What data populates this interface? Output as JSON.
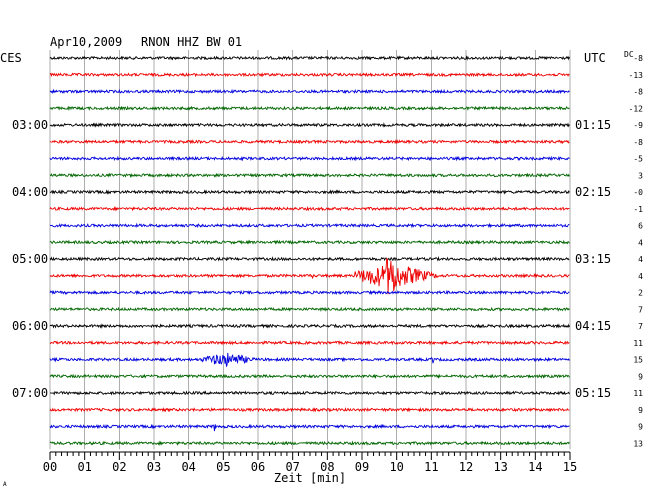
{
  "header": {
    "date": "Apr10,2009",
    "station": "RNON HHZ BW 01",
    "left_tz": "CES",
    "right_tz": "UTC",
    "dc_label": "DC"
  },
  "xaxis": {
    "label": "Zeit [min]",
    "ticks": [
      "00",
      "01",
      "02",
      "03",
      "04",
      "05",
      "06",
      "07",
      "08",
      "09",
      "10",
      "11",
      "12",
      "13",
      "14",
      "15"
    ]
  },
  "footer_mark": "A",
  "chart_data": {
    "type": "line",
    "title": "Apr10,2009 RNON HHZ BW 01",
    "xlabel": "Zeit [min]",
    "xlim": [
      0,
      15
    ],
    "trace_count": 24,
    "trace_minutes": 15,
    "color_cycle": [
      "#000000",
      "#ee0000",
      "#0000dd",
      "#006600"
    ],
    "left_time_labels": [
      {
        "trace": 4,
        "text": "03:00"
      },
      {
        "trace": 8,
        "text": "04:00"
      },
      {
        "trace": 12,
        "text": "05:00"
      },
      {
        "trace": 16,
        "text": "06:00"
      },
      {
        "trace": 20,
        "text": "07:00"
      }
    ],
    "right_time_labels": [
      {
        "trace": 4,
        "text": "01:15"
      },
      {
        "trace": 8,
        "text": "02:15"
      },
      {
        "trace": 12,
        "text": "03:15"
      },
      {
        "trace": 16,
        "text": "04:15"
      },
      {
        "trace": 20,
        "text": "05:15"
      }
    ],
    "dc_offsets": [
      "-8",
      "-13",
      "-8",
      "-12",
      "-9",
      "-8",
      "-5",
      "3",
      "-0",
      "-1",
      "6",
      "4",
      "4",
      "4",
      "2",
      "7",
      "7",
      "11",
      "15",
      "9",
      "11",
      "9",
      "9",
      "13"
    ],
    "events": [
      {
        "trace": 13,
        "start_min": 7.5,
        "end_min": 7.6,
        "amplitude": "small"
      },
      {
        "trace": 13,
        "start_min": 8.8,
        "end_min": 11.2,
        "amplitude": "large"
      },
      {
        "trace": 18,
        "start_min": 4.4,
        "end_min": 6.0,
        "amplitude": "medium"
      },
      {
        "trace": 18,
        "start_min": 11.0,
        "end_min": 11.1,
        "amplitude": "small"
      },
      {
        "trace": 22,
        "start_min": 4.7,
        "end_min": 4.8,
        "amplitude": "small"
      }
    ]
  }
}
